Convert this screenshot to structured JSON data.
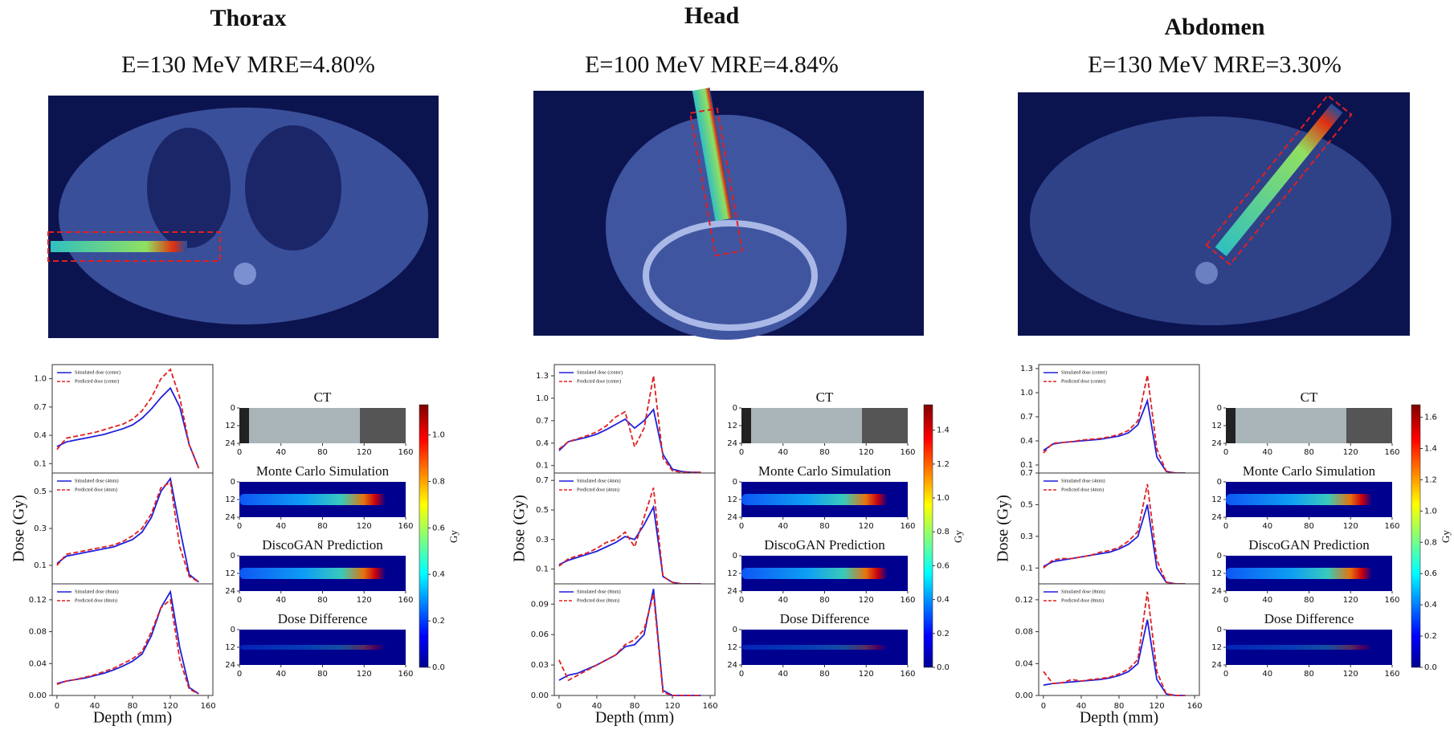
{
  "chart_data": [
    {
      "type": "line",
      "title": "Thorax",
      "subtitle": "E=130 MeV MRE=4.80%",
      "ylabel": "Dose (Gy)",
      "xlabel": "Depth (mm)",
      "charts": [
        {
          "xlim": [
            -5,
            165
          ],
          "ylim": [
            0,
            1.15
          ],
          "yticks": [
            0.1,
            0.4,
            0.7,
            {
              "value": 1,
              "label": "1.0"
            }
          ],
          "x": [
            0,
            10,
            20,
            30,
            40,
            50,
            60,
            70,
            80,
            90,
            100,
            110,
            120,
            130,
            140,
            150
          ],
          "series": [
            {
              "name": "Simulated dose (center)",
              "color": "#1f1fdc",
              "values": [
                0.28,
                0.33,
                0.35,
                0.37,
                0.39,
                0.41,
                0.44,
                0.47,
                0.51,
                0.58,
                0.68,
                0.8,
                0.9,
                0.7,
                0.3,
                0.05
              ]
            },
            {
              "name": "Predicted dose (center)",
              "color": "#e02020",
              "values": [
                0.25,
                0.37,
                0.39,
                0.41,
                0.43,
                0.46,
                0.49,
                0.52,
                0.57,
                0.66,
                0.8,
                1.0,
                1.1,
                0.8,
                0.3,
                0.05
              ]
            }
          ]
        },
        {
          "xlim": [
            -5,
            165
          ],
          "ylim": [
            0,
            0.6
          ],
          "yticks": [
            0.1,
            0.3,
            0.5
          ],
          "x": [
            0,
            10,
            20,
            30,
            40,
            50,
            60,
            70,
            80,
            90,
            100,
            110,
            120,
            130,
            140,
            150
          ],
          "series": [
            {
              "name": "Simulated dose (4mm)",
              "color": "#1f1fdc",
              "values": [
                0.11,
                0.15,
                0.16,
                0.17,
                0.18,
                0.19,
                0.2,
                0.22,
                0.24,
                0.28,
                0.36,
                0.5,
                0.57,
                0.3,
                0.05,
                0.01
              ]
            },
            {
              "name": "Predicted dose (4mm)",
              "color": "#e02020",
              "values": [
                0.1,
                0.16,
                0.17,
                0.18,
                0.19,
                0.2,
                0.21,
                0.23,
                0.26,
                0.3,
                0.38,
                0.52,
                0.55,
                0.2,
                0.04,
                0.01
              ]
            }
          ]
        },
        {
          "xlim": [
            -5,
            165
          ],
          "ylim": [
            0,
            0.14
          ],
          "yticks": [
            {
              "value": 0,
              "label": "0.00"
            },
            0.04,
            0.08,
            0.12
          ],
          "xticks": [
            0,
            40,
            80,
            120,
            160
          ],
          "x": [
            0,
            10,
            20,
            30,
            40,
            50,
            60,
            70,
            80,
            90,
            100,
            110,
            120,
            130,
            140,
            150
          ],
          "series": [
            {
              "name": "Simulated dose (8mm)",
              "color": "#1f1fdc",
              "values": [
                0.015,
                0.018,
                0.02,
                0.022,
                0.025,
                0.028,
                0.032,
                0.037,
                0.043,
                0.052,
                0.075,
                0.11,
                0.13,
                0.06,
                0.01,
                0.002
              ]
            },
            {
              "name": "Predicted dose (8mm)",
              "color": "#e02020",
              "values": [
                0.014,
                0.018,
                0.02,
                0.023,
                0.026,
                0.03,
                0.034,
                0.04,
                0.046,
                0.055,
                0.08,
                0.11,
                0.12,
                0.045,
                0.008,
                0.002
              ]
            }
          ]
        }
      ],
      "map_titles": [
        "CT",
        "Monte Carlo Simulation",
        "DiscoGAN Prediction",
        "Dose Difference"
      ],
      "map_xticks": [
        0,
        40,
        80,
        120,
        160
      ],
      "map_yticks": [
        0,
        12,
        24
      ],
      "colorbar": {
        "label": "Gy",
        "lim": [
          0,
          1.13
        ],
        "ticks": [
          {
            "value": 0,
            "label": "0.0"
          },
          0.2,
          0.4,
          0.6,
          0.8,
          {
            "value": 1,
            "label": "1.0"
          }
        ]
      }
    },
    {
      "type": "line",
      "title": "Head",
      "subtitle": "E=100 MeV MRE=4.84%",
      "ylabel": "Dose (Gy)",
      "xlabel": "Depth (mm)",
      "charts": [
        {
          "xlim": [
            -5,
            165
          ],
          "ylim": [
            0,
            1.45
          ],
          "yticks": [
            0.1,
            0.4,
            0.7,
            {
              "value": 1,
              "label": "1.0"
            },
            1.3
          ],
          "x": [
            0,
            10,
            20,
            30,
            40,
            50,
            60,
            70,
            80,
            90,
            100,
            110,
            120,
            130,
            140,
            150
          ],
          "series": [
            {
              "name": "Simulated dose (center)",
              "color": "#1f1fdc",
              "values": [
                0.3,
                0.42,
                0.45,
                0.48,
                0.52,
                0.58,
                0.65,
                0.72,
                0.6,
                0.7,
                0.85,
                0.25,
                0.05,
                0.02,
                0.01,
                0.01
              ]
            },
            {
              "name": "Predicted dose (center)",
              "color": "#e02020",
              "values": [
                0.32,
                0.42,
                0.46,
                0.5,
                0.55,
                0.63,
                0.75,
                0.82,
                0.35,
                0.6,
                1.3,
                0.2,
                0.03,
                0.01,
                0.01,
                0.01
              ]
            }
          ]
        },
        {
          "xlim": [
            -5,
            165
          ],
          "ylim": [
            0,
            0.75
          ],
          "yticks": [
            0.1,
            0.3,
            0.5,
            0.7
          ],
          "x": [
            0,
            10,
            20,
            30,
            40,
            50,
            60,
            70,
            80,
            90,
            100,
            110,
            120,
            130,
            140,
            150
          ],
          "series": [
            {
              "name": "Simulated dose (4mm)",
              "color": "#1f1fdc",
              "values": [
                0.13,
                0.16,
                0.18,
                0.2,
                0.22,
                0.25,
                0.28,
                0.32,
                0.3,
                0.4,
                0.52,
                0.05,
                0.01,
                0,
                0,
                0
              ]
            },
            {
              "name": "Predicted dose (4mm)",
              "color": "#e02020",
              "values": [
                0.12,
                0.17,
                0.19,
                0.21,
                0.24,
                0.28,
                0.3,
                0.35,
                0.25,
                0.45,
                0.65,
                0.05,
                0.01,
                0,
                0,
                0
              ]
            }
          ]
        },
        {
          "xlim": [
            -5,
            165
          ],
          "ylim": [
            0,
            0.11
          ],
          "yticks": [
            {
              "value": 0,
              "label": "0.00"
            },
            0.03,
            0.06,
            0.09
          ],
          "xticks": [
            0,
            40,
            80,
            120,
            160
          ],
          "x": [
            0,
            10,
            20,
            30,
            40,
            50,
            60,
            70,
            80,
            90,
            100,
            110,
            120,
            130,
            140,
            150
          ],
          "series": [
            {
              "name": "Simulated dose (8mm)",
              "color": "#1f1fdc",
              "values": [
                0.015,
                0.02,
                0.022,
                0.026,
                0.03,
                0.035,
                0.04,
                0.048,
                0.05,
                0.06,
                0.105,
                0.005,
                0,
                0,
                0,
                0
              ]
            },
            {
              "name": "Predicted dose (8mm)",
              "color": "#e02020",
              "values": [
                0.035,
                0.015,
                0.02,
                0.025,
                0.03,
                0.035,
                0.04,
                0.05,
                0.055,
                0.065,
                0.1,
                0.003,
                0,
                0,
                0,
                0
              ]
            }
          ]
        }
      ],
      "map_titles": [
        "CT",
        "Monte Carlo Simulation",
        "DiscoGAN Prediction",
        "Dose Difference"
      ],
      "map_xticks": [
        0,
        40,
        80,
        120,
        160
      ],
      "map_yticks": [
        0,
        12,
        24
      ],
      "colorbar": {
        "label": "Gy",
        "lim": [
          0,
          1.55
        ],
        "ticks": [
          {
            "value": 0,
            "label": "0.0"
          },
          0.2,
          0.4,
          0.6,
          0.8,
          {
            "value": 1,
            "label": "1.0"
          },
          1.2,
          1.4
        ]
      }
    },
    {
      "type": "line",
      "title": "Abdomen",
      "subtitle": "E=130 MeV MRE=3.30%",
      "ylabel": "Dose (Gy)",
      "xlabel": "Depth (mm)",
      "charts": [
        {
          "xlim": [
            -5,
            165
          ],
          "ylim": [
            0,
            1.35
          ],
          "yticks": [
            0.1,
            0.4,
            0.7,
            {
              "value": 1,
              "label": "1.0"
            },
            1.3
          ],
          "x": [
            0,
            10,
            20,
            30,
            40,
            50,
            60,
            70,
            80,
            90,
            100,
            110,
            120,
            130,
            140,
            150
          ],
          "series": [
            {
              "name": "Simulated dose (center)",
              "color": "#1f1fdc",
              "values": [
                0.28,
                0.36,
                0.38,
                0.39,
                0.4,
                0.41,
                0.42,
                0.44,
                0.46,
                0.5,
                0.6,
                0.9,
                0.2,
                0.02,
                0,
                0
              ]
            },
            {
              "name": "Predicted dose (center)",
              "color": "#e02020",
              "values": [
                0.25,
                0.37,
                0.38,
                0.39,
                0.41,
                0.42,
                0.43,
                0.45,
                0.48,
                0.53,
                0.65,
                1.22,
                0.3,
                0.02,
                0,
                0
              ]
            }
          ]
        },
        {
          "xlim": [
            -5,
            165
          ],
          "ylim": [
            0,
            0.7
          ],
          "yticks": [
            0.1,
            0.3,
            0.5,
            0.7
          ],
          "x": [
            0,
            10,
            20,
            30,
            40,
            50,
            60,
            70,
            80,
            90,
            100,
            110,
            120,
            130,
            140,
            150
          ],
          "series": [
            {
              "name": "Simulated dose (4mm)",
              "color": "#1f1fdc",
              "values": [
                0.11,
                0.14,
                0.15,
                0.16,
                0.17,
                0.18,
                0.19,
                0.2,
                0.22,
                0.25,
                0.3,
                0.5,
                0.1,
                0.01,
                0,
                0
              ]
            },
            {
              "name": "Predicted dose (4mm)",
              "color": "#e02020",
              "values": [
                0.1,
                0.15,
                0.16,
                0.16,
                0.17,
                0.18,
                0.2,
                0.21,
                0.23,
                0.27,
                0.33,
                0.63,
                0.15,
                0.01,
                0,
                0
              ]
            }
          ]
        },
        {
          "xlim": [
            -5,
            165
          ],
          "ylim": [
            0,
            0.14
          ],
          "yticks": [
            {
              "value": 0,
              "label": "0.00"
            },
            0.04,
            0.08,
            0.12
          ],
          "xticks": [
            0,
            40,
            80,
            120,
            160
          ],
          "x": [
            0,
            10,
            20,
            30,
            40,
            50,
            60,
            70,
            80,
            90,
            100,
            110,
            120,
            130,
            140,
            150
          ],
          "series": [
            {
              "name": "Simulated dose (8mm)",
              "color": "#1f1fdc",
              "values": [
                0.013,
                0.015,
                0.016,
                0.017,
                0.018,
                0.019,
                0.02,
                0.022,
                0.025,
                0.03,
                0.04,
                0.095,
                0.02,
                0.002,
                0,
                0
              ]
            },
            {
              "name": "Predicted dose (8mm)",
              "color": "#e02020",
              "values": [
                0.03,
                0.015,
                0.016,
                0.02,
                0.018,
                0.02,
                0.021,
                0.023,
                0.027,
                0.033,
                0.045,
                0.13,
                0.03,
                0.002,
                0,
                0
              ]
            }
          ]
        }
      ],
      "map_titles": [
        "CT",
        "Monte Carlo Simulation",
        "DiscoGAN Prediction",
        "Dose Difference"
      ],
      "map_xticks": [
        0,
        40,
        80,
        120,
        160
      ],
      "map_yticks": [
        0,
        12,
        24
      ],
      "colorbar": {
        "label": "Gy",
        "lim": [
          0,
          1.68
        ],
        "ticks": [
          {
            "value": 0,
            "label": "0.0"
          },
          0.2,
          0.4,
          0.6,
          0.8,
          {
            "value": 1,
            "label": "1.0"
          },
          1.2,
          1.4,
          1.6
        ]
      }
    }
  ]
}
